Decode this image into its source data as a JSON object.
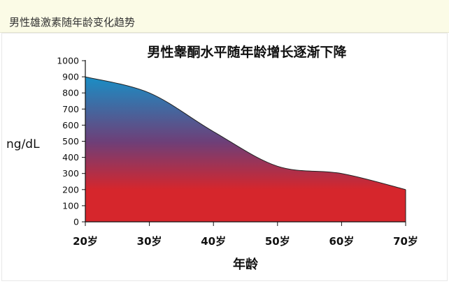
{
  "header": {
    "title": "男性雄激素随年龄变化趋势"
  },
  "chart_data": {
    "type": "area",
    "title": "男性睾酮水平随年龄增长逐渐下降",
    "ylabel": "ng/dL",
    "xlabel": "年龄",
    "x": [
      20,
      30,
      40,
      50,
      60,
      70
    ],
    "x_tick_labels": [
      "20岁",
      "30岁",
      "40岁",
      "50岁",
      "60岁",
      "70岁"
    ],
    "y_ticks": [
      0,
      100,
      200,
      300,
      400,
      500,
      600,
      700,
      800,
      900,
      1000
    ],
    "series": [
      {
        "values": [
          900,
          800,
          560,
          345,
          300,
          200
        ]
      }
    ],
    "xlim": [
      20,
      70
    ],
    "ylim": [
      0,
      1000
    ],
    "grid": false,
    "colors": {
      "top": "#1a8ec5",
      "middle": "#6e3f78",
      "bottom": "#d6262c",
      "outline": "#222222"
    }
  }
}
